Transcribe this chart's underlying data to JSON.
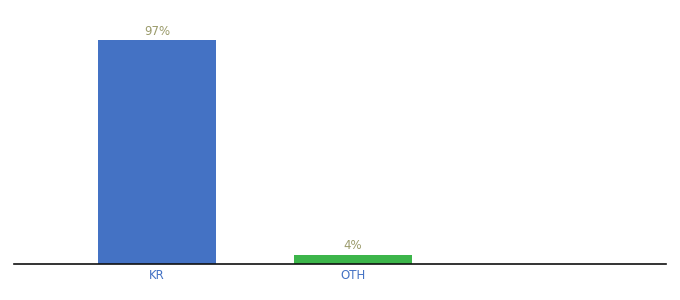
{
  "categories": [
    "KR",
    "OTH"
  ],
  "values": [
    97,
    4
  ],
  "bar_colors": [
    "#4472c4",
    "#3cb54a"
  ],
  "label_colors": [
    "#9b9b6b",
    "#9b9b6b"
  ],
  "labels": [
    "97%",
    "4%"
  ],
  "ylim": [
    0,
    108
  ],
  "background_color": "#ffffff",
  "bar_width": 0.18,
  "x_positions": [
    0.22,
    0.52
  ],
  "xlim": [
    0.0,
    1.0
  ],
  "tick_color": "#4472c4",
  "label_fontsize": 8.5,
  "axis_label_fontsize": 8.5
}
